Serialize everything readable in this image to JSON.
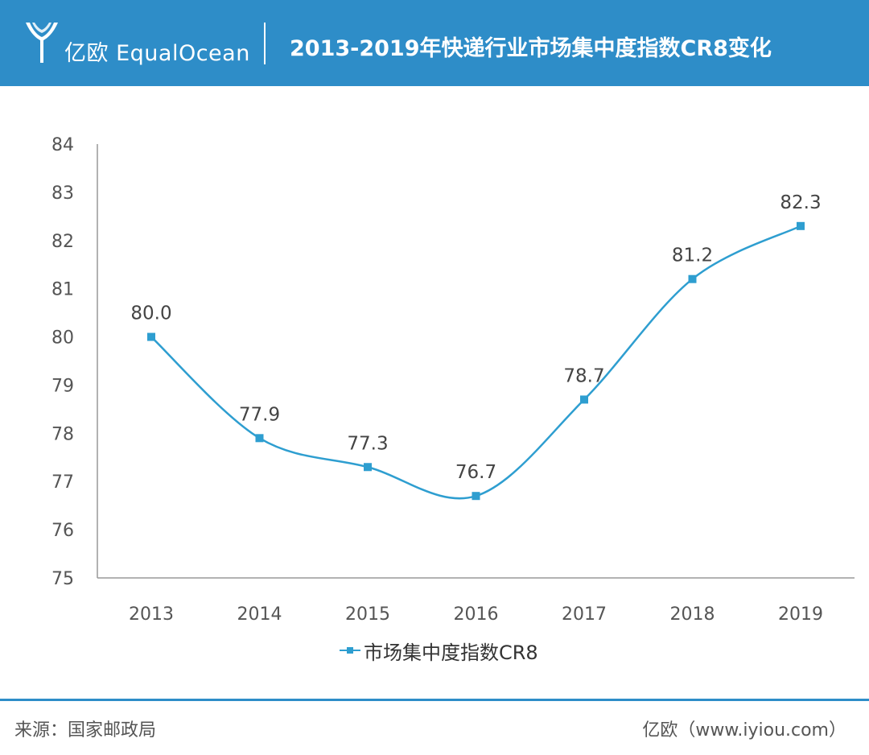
{
  "header": {
    "brand": "亿欧 EqualOcean",
    "title": "2013-2019年快递行业市场集中度指数CR8变化"
  },
  "chart_data": {
    "type": "line",
    "categories": [
      "2013",
      "2014",
      "2015",
      "2016",
      "2017",
      "2018",
      "2019"
    ],
    "series": [
      {
        "name": "市场集中度指数CR8",
        "values": [
          80.0,
          77.9,
          77.3,
          76.7,
          78.7,
          81.2,
          82.3
        ]
      }
    ],
    "data_labels": [
      "80.0",
      "77.9",
      "77.3",
      "76.7",
      "78.7",
      "81.2",
      "82.3"
    ],
    "ylim": [
      75,
      84
    ],
    "yticks": [
      75,
      76,
      77,
      78,
      79,
      80,
      81,
      82,
      83,
      84
    ],
    "grid": false,
    "legend": "bottom-center",
    "line_color": "#2e9ed0"
  },
  "footer": {
    "source": "来源：国家邮政局",
    "credit": "亿欧（www.iyiou.com）"
  },
  "colors": {
    "header_bg": "#2e8dc8",
    "line": "#2e9ed0"
  }
}
